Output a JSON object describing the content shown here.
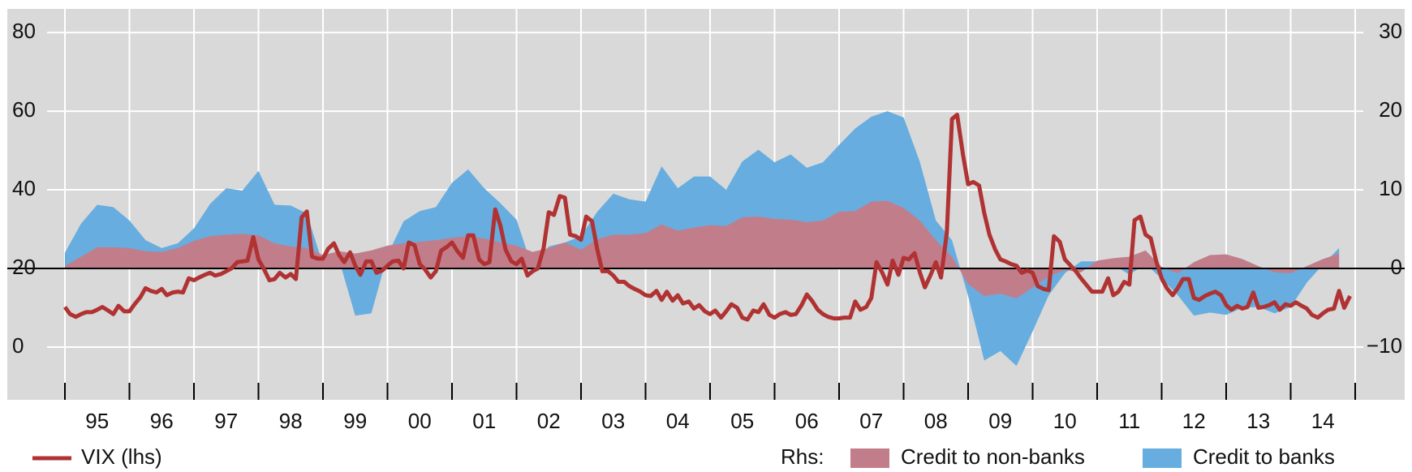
{
  "chart_data": {
    "type": "line",
    "xlim": [
      1995,
      2015
    ],
    "xticks": [
      {
        "value": 1995,
        "label": "95"
      },
      {
        "value": 1996,
        "label": "96"
      },
      {
        "value": 1997,
        "label": "97"
      },
      {
        "value": 1998,
        "label": "98"
      },
      {
        "value": 1999,
        "label": "99"
      },
      {
        "value": 2000,
        "label": "00"
      },
      {
        "value": 2001,
        "label": "01"
      },
      {
        "value": 2002,
        "label": "02"
      },
      {
        "value": 2003,
        "label": "03"
      },
      {
        "value": 2004,
        "label": "04"
      },
      {
        "value": 2005,
        "label": "05"
      },
      {
        "value": 2006,
        "label": "06"
      },
      {
        "value": 2007,
        "label": "07"
      },
      {
        "value": 2008,
        "label": "08"
      },
      {
        "value": 2009,
        "label": "09"
      },
      {
        "value": 2010,
        "label": "10"
      },
      {
        "value": 2011,
        "label": "11"
      },
      {
        "value": 2012,
        "label": "12"
      },
      {
        "value": 2013,
        "label": "13"
      },
      {
        "value": 2014,
        "label": "14"
      }
    ],
    "ylim": [
      -13.4,
      86
    ],
    "yticks": [
      0,
      20,
      40,
      60,
      80
    ],
    "y2lim": [
      -16.7,
      33
    ],
    "y2ticks": [
      {
        "value": -10,
        "label": "−10"
      },
      0,
      10,
      20,
      30
    ],
    "grid": true,
    "legend_prefix": "Rhs:",
    "series": [
      {
        "name": "VIX (lhs)",
        "type": "line",
        "color": "#b03232",
        "x": [
          1995,
          1995.08,
          1995.17,
          1995.25,
          1995.33,
          1995.42,
          1995.5,
          1995.58,
          1995.67,
          1995.75,
          1995.83,
          1995.92,
          1996,
          1996.08,
          1996.17,
          1996.25,
          1996.33,
          1996.42,
          1996.5,
          1996.58,
          1996.67,
          1996.75,
          1996.83,
          1996.92,
          1997,
          1997.08,
          1997.17,
          1997.25,
          1997.33,
          1997.42,
          1997.5,
          1997.58,
          1997.67,
          1997.75,
          1997.83,
          1997.92,
          1998,
          1998.08,
          1998.17,
          1998.25,
          1998.33,
          1998.42,
          1998.5,
          1998.58,
          1998.67,
          1998.75,
          1998.83,
          1998.92,
          1999,
          1999.08,
          1999.17,
          1999.25,
          1999.33,
          1999.42,
          1999.5,
          1999.58,
          1999.67,
          1999.75,
          1999.83,
          1999.92,
          2000,
          2000.08,
          2000.17,
          2000.25,
          2000.33,
          2000.42,
          2000.5,
          2000.58,
          2000.67,
          2000.75,
          2000.83,
          2000.92,
          2001,
          2001.08,
          2001.17,
          2001.25,
          2001.33,
          2001.42,
          2001.5,
          2001.58,
          2001.67,
          2001.75,
          2001.83,
          2001.92,
          2002,
          2002.08,
          2002.17,
          2002.25,
          2002.33,
          2002.42,
          2002.5,
          2002.58,
          2002.67,
          2002.75,
          2002.83,
          2002.92,
          2003,
          2003.08,
          2003.17,
          2003.25,
          2003.33,
          2003.42,
          2003.5,
          2003.58,
          2003.67,
          2003.75,
          2003.83,
          2003.92,
          2004,
          2004.08,
          2004.17,
          2004.25,
          2004.33,
          2004.42,
          2004.5,
          2004.58,
          2004.67,
          2004.75,
          2004.83,
          2004.92,
          2005,
          2005.08,
          2005.17,
          2005.25,
          2005.33,
          2005.42,
          2005.5,
          2005.58,
          2005.67,
          2005.75,
          2005.83,
          2005.92,
          2006,
          2006.08,
          2006.17,
          2006.25,
          2006.33,
          2006.42,
          2006.5,
          2006.58,
          2006.67,
          2006.75,
          2006.83,
          2006.92,
          2007,
          2007.08,
          2007.17,
          2007.25,
          2007.33,
          2007.42,
          2007.5,
          2007.58,
          2007.67,
          2007.75,
          2007.83,
          2007.92,
          2008,
          2008.08,
          2008.17,
          2008.25,
          2008.33,
          2008.42,
          2008.5,
          2008.58,
          2008.67,
          2008.75,
          2008.83,
          2008.92,
          2009,
          2009.08,
          2009.17,
          2009.25,
          2009.33,
          2009.42,
          2009.5,
          2009.58,
          2009.67,
          2009.75,
          2009.83,
          2009.92,
          2010,
          2010.08,
          2010.17,
          2010.25,
          2010.33,
          2010.42,
          2010.5,
          2010.58,
          2010.67,
          2010.75,
          2010.83,
          2010.92,
          2011,
          2011.08,
          2011.17,
          2011.25,
          2011.33,
          2011.42,
          2011.5,
          2011.58,
          2011.67,
          2011.75,
          2011.83,
          2011.92,
          2012,
          2012.08,
          2012.17,
          2012.25,
          2012.33,
          2012.42,
          2012.5,
          2012.58,
          2012.67,
          2012.75,
          2012.83,
          2012.92,
          2013,
          2013.08,
          2013.17,
          2013.25,
          2013.33,
          2013.42,
          2013.5,
          2013.58,
          2013.67,
          2013.75,
          2013.83,
          2013.92,
          2014,
          2014.08,
          2014.17,
          2014.25,
          2014.33,
          2014.42,
          2014.5,
          2014.58,
          2014.67,
          2014.75,
          2014.83,
          2014.92
        ],
        "values": [
          10.2,
          8.4,
          7.7,
          8.4,
          8.9,
          8.9,
          9.5,
          10.2,
          9.3,
          8.4,
          10.5,
          9.1,
          9.1,
          10.9,
          12.7,
          15,
          14.3,
          13.9,
          14.8,
          13.2,
          13.9,
          14.1,
          13.9,
          17.5,
          17,
          17.7,
          18.4,
          18.9,
          18.2,
          18.6,
          19.3,
          20,
          21.6,
          21.8,
          22,
          28,
          22.3,
          20,
          17,
          17.3,
          18.9,
          17.7,
          18.6,
          17.3,
          33,
          34.5,
          23,
          22.5,
          22.5,
          25,
          26.4,
          23.4,
          21.6,
          24.1,
          20.7,
          18.4,
          21.8,
          21.8,
          18.9,
          19.5,
          20.7,
          21.8,
          22,
          20,
          26.6,
          25.9,
          21.1,
          19.8,
          17.7,
          19.3,
          24.5,
          25.5,
          26.6,
          24.5,
          22.7,
          28.4,
          28.4,
          22.3,
          21.1,
          21.6,
          35,
          30.9,
          24.8,
          21.8,
          21.1,
          22.5,
          18.2,
          19.3,
          20,
          25.2,
          34.3,
          33.6,
          38.4,
          38,
          28.6,
          28.2,
          27.3,
          33.2,
          32,
          25,
          19.3,
          19.3,
          18.2,
          16.6,
          16.6,
          15.5,
          14.8,
          14.1,
          13.2,
          13,
          14.3,
          12,
          14.1,
          11.8,
          13.2,
          11.1,
          11.6,
          9.8,
          10.7,
          9.1,
          8.4,
          9.3,
          7.5,
          9.1,
          10.9,
          10,
          7.5,
          7,
          9.3,
          8.9,
          10.9,
          8.2,
          7.5,
          8.4,
          8.9,
          8.2,
          8.4,
          10.7,
          13.4,
          11.8,
          9.5,
          8.4,
          7.7,
          7.3,
          7.3,
          7.5,
          7.5,
          11.6,
          9.5,
          10.2,
          12.5,
          21.6,
          18.9,
          15.9,
          22,
          18.4,
          22.7,
          22.3,
          23.9,
          19.1,
          15.2,
          18.4,
          21.6,
          17.7,
          29.1,
          58,
          59.1,
          49,
          41.4,
          42,
          41.1,
          34.1,
          28.6,
          24.8,
          22.3,
          21.8,
          21.1,
          20.7,
          18.9,
          19.5,
          18.9,
          15.5,
          14.8,
          14.5,
          28.2,
          26.8,
          22.3,
          20.9,
          19.3,
          17.5,
          15.9,
          14.1,
          14.1,
          14.1,
          17.5,
          13.2,
          14.1,
          16.6,
          15.9,
          32.3,
          33.2,
          28.6,
          27.7,
          21.6,
          17.5,
          15,
          13.2,
          15,
          17.3,
          17.3,
          12.5,
          12,
          13,
          13.6,
          14.1,
          13.2,
          10.7,
          9.5,
          10.5,
          9.8,
          10.2,
          13.9,
          10,
          10.2,
          10.7,
          11.4,
          9.5,
          10.9,
          10.5,
          11.4,
          10.5,
          9.8,
          8.2,
          7.5,
          8.6,
          9.5,
          9.8,
          14.3,
          10,
          13
        ]
      },
      {
        "name": "Credit to non-banks",
        "type": "area",
        "axis": "y2",
        "color": "#c27d8b",
        "x": [
          1995,
          1995.25,
          1995.5,
          1995.75,
          1996,
          1996.25,
          1996.5,
          1996.75,
          1997,
          1997.25,
          1997.5,
          1997.75,
          1998,
          1998.25,
          1998.5,
          1998.75,
          1999,
          1999.25,
          1999.5,
          1999.75,
          2000,
          2000.25,
          2000.5,
          2000.75,
          2001,
          2001.25,
          2001.5,
          2001.75,
          2002,
          2002.25,
          2002.5,
          2002.75,
          2003,
          2003.25,
          2003.5,
          2003.75,
          2004,
          2004.25,
          2004.5,
          2004.75,
          2005,
          2005.25,
          2005.5,
          2005.75,
          2006,
          2006.25,
          2006.5,
          2006.75,
          2007,
          2007.25,
          2007.5,
          2007.75,
          2008,
          2008.25,
          2008.5,
          2008.75,
          2009,
          2009.25,
          2009.5,
          2009.75,
          2010,
          2010.25,
          2010.5,
          2010.75,
          2011,
          2011.25,
          2011.5,
          2011.75,
          2012,
          2012.25,
          2012.5,
          2012.75,
          2013,
          2013.25,
          2013.5,
          2013.75,
          2014,
          2014.25,
          2014.5,
          2014.75
        ],
        "values": [
          0.3,
          1.5,
          2.7,
          2.7,
          2.6,
          2.2,
          2.1,
          2.6,
          3.5,
          4.1,
          4.3,
          4.4,
          4.2,
          3.2,
          2.8,
          2.6,
          1.7,
          2.2,
          1.9,
          2.3,
          2.9,
          3.2,
          3.4,
          3.6,
          3.9,
          4.1,
          3.8,
          3.3,
          2.9,
          2.1,
          2.6,
          3.3,
          2.4,
          3.7,
          4.3,
          4.3,
          4.5,
          5.6,
          4.8,
          5.2,
          5.5,
          5.4,
          6.5,
          6.6,
          6.3,
          6.2,
          5.9,
          6.1,
          7.2,
          7.3,
          8.5,
          8.6,
          7.7,
          6.1,
          3.6,
          1.5,
          -2,
          -3.5,
          -3.2,
          -3.8,
          -2.4,
          -1,
          -0.2,
          -0.5,
          1,
          1.3,
          1.5,
          2.3,
          0.2,
          -0.6,
          0.8,
          1.7,
          1.8,
          1.2,
          0.3,
          -0.5,
          -0.6,
          0.3,
          1.2,
          1.9
        ]
      },
      {
        "name": "Credit to banks",
        "type": "area",
        "axis": "y2",
        "color": "#67addf",
        "x": [
          1995,
          1995.25,
          1995.5,
          1995.75,
          1996,
          1996.25,
          1996.5,
          1996.75,
          1997,
          1997.25,
          1997.5,
          1997.75,
          1998,
          1998.25,
          1998.5,
          1998.75,
          1999,
          1999.25,
          1999.5,
          1999.75,
          2000,
          2000.25,
          2000.5,
          2000.75,
          2001,
          2001.25,
          2001.5,
          2001.75,
          2002,
          2002.25,
          2002.5,
          2002.75,
          2003,
          2003.25,
          2003.5,
          2003.75,
          2004,
          2004.25,
          2004.5,
          2004.75,
          2005,
          2005.25,
          2005.5,
          2005.75,
          2006,
          2006.25,
          2006.5,
          2006.75,
          2007,
          2007.25,
          2007.5,
          2007.75,
          2008,
          2008.25,
          2008.5,
          2008.75,
          2009,
          2009.25,
          2009.5,
          2009.75,
          2010,
          2010.25,
          2010.5,
          2010.75,
          2011,
          2011.25,
          2011.5,
          2011.75,
          2012,
          2012.25,
          2012.5,
          2012.75,
          2013,
          2013.25,
          2013.5,
          2013.75,
          2014,
          2014.25,
          2014.5,
          2014.75
        ],
        "values": [
          2,
          5.7,
          8.1,
          7.8,
          6.1,
          3.6,
          2.6,
          3.2,
          5.1,
          8.2,
          10.2,
          9.9,
          12.4,
          8.1,
          8,
          7,
          0.5,
          1.1,
          -6,
          -5.7,
          1.7,
          6,
          7.3,
          7.8,
          10.9,
          12.6,
          10.2,
          8.3,
          6.2,
          0,
          2.8,
          3.3,
          4.1,
          7.2,
          9.5,
          8.8,
          8.5,
          13,
          10.2,
          11.7,
          11.7,
          10,
          13.6,
          15.1,
          13.5,
          14.5,
          12.8,
          13.5,
          15.7,
          17.8,
          19.3,
          20,
          19.2,
          13.6,
          6.1,
          3.6,
          -3.5,
          -11.7,
          -10.5,
          -12.4,
          -8,
          -3.4,
          -0.6,
          0.9,
          0.9,
          0.5,
          -0.8,
          0.6,
          -1.3,
          -3.4,
          -6,
          -5.6,
          -5.9,
          -5,
          -4.9,
          -5.7,
          -4.9,
          -1.8,
          0.5,
          2.6
        ]
      }
    ]
  }
}
